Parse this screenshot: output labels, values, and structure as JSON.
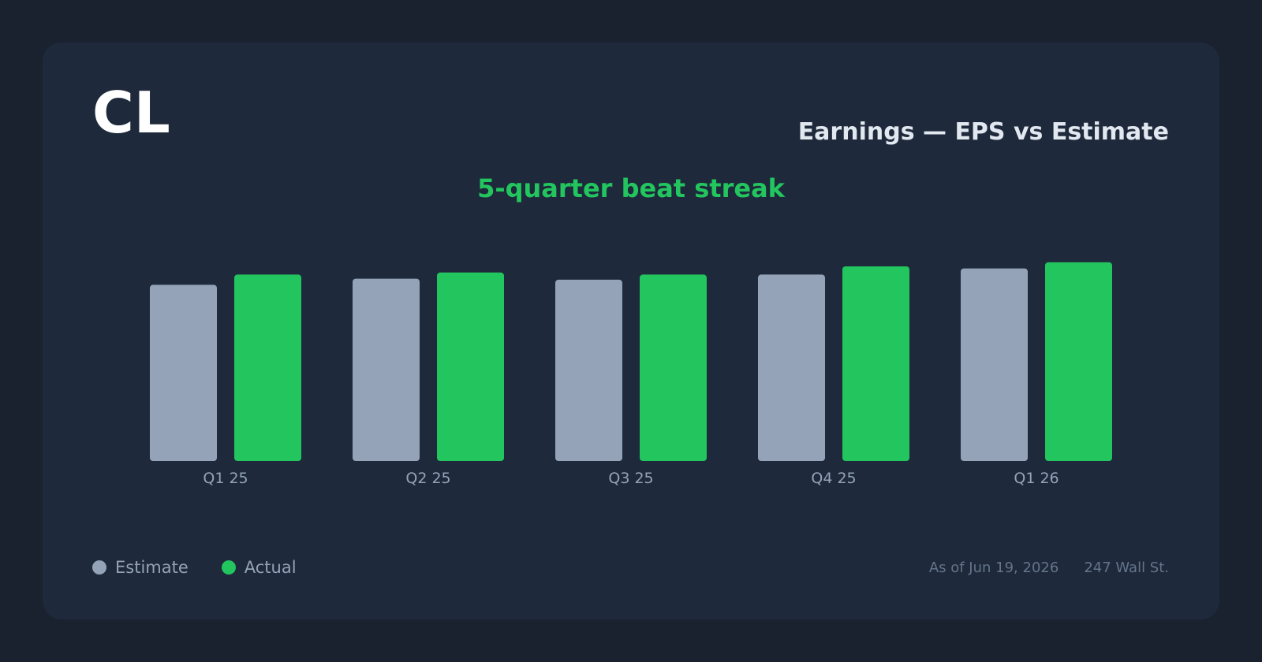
{
  "header": {
    "ticker": "CL",
    "title": "Earnings — EPS vs Estimate",
    "subtitle": "5-quarter beat streak"
  },
  "legend": {
    "estimate_label": "Estimate",
    "actual_label": "Actual"
  },
  "footer": {
    "as_of": "As of Jun 19, 2026",
    "source": "247 Wall St."
  },
  "colors": {
    "estimate": "#94a3b8",
    "actual": "#22c55e",
    "tick_label": "#94a3b8"
  },
  "chart_data": {
    "type": "bar",
    "title": "Earnings — EPS vs Estimate",
    "subtitle": "5-quarter beat streak",
    "categories": [
      "Q1 25",
      "Q2 25",
      "Q3 25",
      "Q4 25",
      "Q1 26"
    ],
    "series": [
      {
        "name": "Estimate",
        "values": [
          0.86,
          0.89,
          0.885,
          0.91,
          0.94
        ]
      },
      {
        "name": "Actual",
        "values": [
          0.91,
          0.92,
          0.91,
          0.95,
          0.97
        ]
      }
    ],
    "ylim": [
      0,
      1.0
    ],
    "grid": false,
    "legend_position": "bottom-left"
  }
}
